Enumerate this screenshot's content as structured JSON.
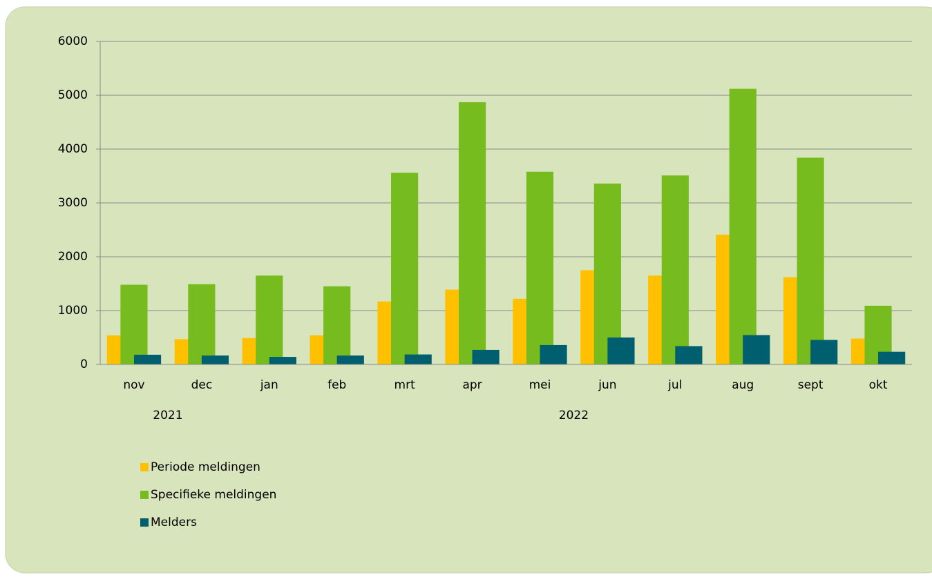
{
  "chart_data": {
    "type": "bar",
    "categories": [
      "nov",
      "dec",
      "jan",
      "feb",
      "mrt",
      "apr",
      "mei",
      "jun",
      "jul",
      "aug",
      "sept",
      "okt"
    ],
    "x_groups": [
      {
        "label": "2021",
        "span": 2
      },
      {
        "label": "2022",
        "span": 10
      }
    ],
    "series": [
      {
        "name": "Periode meldingen",
        "color": "#ffc000",
        "values": [
          540,
          470,
          490,
          540,
          1170,
          1390,
          1220,
          1750,
          1650,
          2410,
          1620,
          480
        ]
      },
      {
        "name": "Specifieke meldingen",
        "color": "#77bc1f",
        "values": [
          1480,
          1490,
          1650,
          1450,
          3560,
          4870,
          3580,
          3360,
          3510,
          5120,
          3840,
          1090
        ]
      },
      {
        "name": "Melders",
        "color": "#005f6e",
        "values": [
          180,
          165,
          140,
          165,
          185,
          270,
          360,
          500,
          340,
          545,
          455,
          235
        ]
      }
    ],
    "ylim": [
      0,
      6000
    ],
    "yticks": [
      0,
      1000,
      2000,
      3000,
      4000,
      5000,
      6000
    ],
    "grid": true
  }
}
